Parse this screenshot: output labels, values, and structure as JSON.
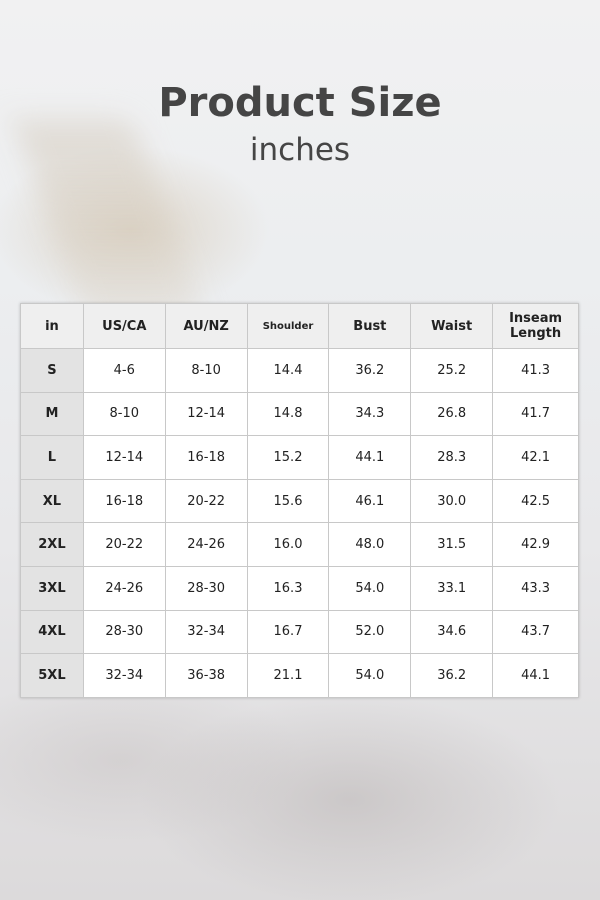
{
  "title": "Product Size",
  "subtitle": "inches",
  "table": {
    "headers": [
      "in",
      "US/CA",
      "AU/NZ",
      "Shoulder",
      "Bust",
      "Waist",
      "Inseam Length"
    ],
    "rows": [
      [
        "S",
        "4-6",
        "8-10",
        "14.4",
        "36.2",
        "25.2",
        "41.3"
      ],
      [
        "M",
        "8-10",
        "12-14",
        "14.8",
        "34.3",
        "26.8",
        "41.7"
      ],
      [
        "L",
        "12-14",
        "16-18",
        "15.2",
        "44.1",
        "28.3",
        "42.1"
      ],
      [
        "XL",
        "16-18",
        "20-22",
        "15.6",
        "46.1",
        "30.0",
        "42.5"
      ],
      [
        "2XL",
        "20-22",
        "24-26",
        "16.0",
        "48.0",
        "31.5",
        "42.9"
      ],
      [
        "3XL",
        "24-26",
        "28-30",
        "16.3",
        "54.0",
        "33.1",
        "43.3"
      ],
      [
        "4XL",
        "28-30",
        "32-34",
        "16.7",
        "52.0",
        "34.6",
        "43.7"
      ],
      [
        "5XL",
        "32-34",
        "36-38",
        "21.1",
        "54.0",
        "36.2",
        "44.1"
      ]
    ]
  }
}
